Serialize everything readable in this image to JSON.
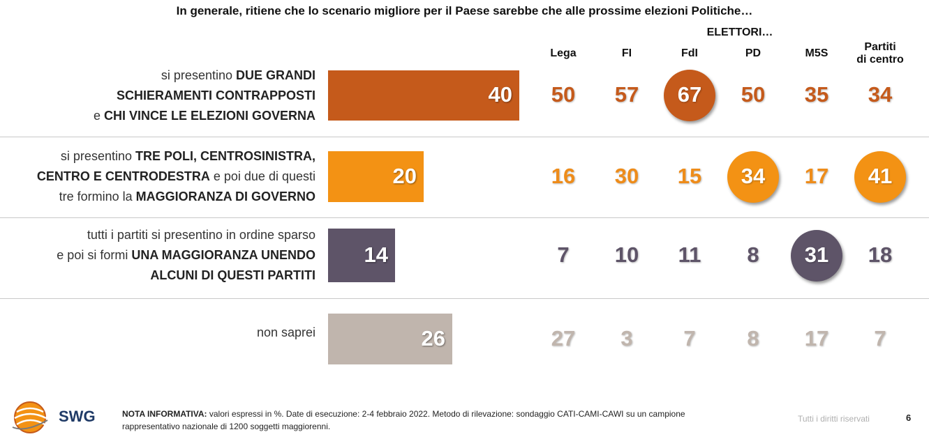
{
  "title": "In generale, ritiene che lo scenario migliore per il Paese sarebbe che alle prossime elezioni Politiche…",
  "group_header": "ELETTORI…",
  "columns": [
    {
      "line1": "Lega",
      "line2": ""
    },
    {
      "line1": "FI",
      "line2": ""
    },
    {
      "line1": "FdI",
      "line2": ""
    },
    {
      "line1": "PD",
      "line2": ""
    },
    {
      "line1": "M5S",
      "line2": ""
    },
    {
      "line1": "Partiti",
      "line2": "di centro"
    }
  ],
  "rows": [
    {
      "label_lines": [
        [
          {
            "t": "si presentino ",
            "b": false
          },
          {
            "t": "DUE GRANDI",
            "b": true
          }
        ],
        [
          {
            "t": "SCHIERAMENTI CONTRAPPOSTI",
            "b": true
          }
        ],
        [
          {
            "t": "e ",
            "b": false
          },
          {
            "t": "CHI VINCE LE ELEZIONI GOVERNA",
            "b": true
          }
        ]
      ],
      "color": "#C55A1B",
      "text_color": "#C55A1B",
      "highlight": [
        2
      ]
    },
    {
      "label_lines": [
        [
          {
            "t": "si presentino ",
            "b": false
          },
          {
            "t": "TRE POLI, CENTROSINISTRA,",
            "b": true
          }
        ],
        [
          {
            "t": "CENTRO E CENTRODESTRA",
            "b": true
          },
          {
            "t": " e poi due di questi",
            "b": false
          }
        ],
        [
          {
            "t": "tre formino la ",
            "b": false
          },
          {
            "t": "MAGGIORANZA DI GOVERNO",
            "b": true
          }
        ]
      ],
      "color": "#F39214",
      "text_color": "#EE8C1A",
      "highlight": [
        3,
        5
      ]
    },
    {
      "label_lines": [
        [
          {
            "t": "tutti i partiti si presentino in ordine sparso",
            "b": false
          }
        ],
        [
          {
            "t": "e poi si formi ",
            "b": false
          },
          {
            "t": "UNA MAGGIORANZA UNENDO",
            "b": true
          }
        ],
        [
          {
            "t": "ALCUNI DI QUESTI PARTITI",
            "b": true
          }
        ]
      ],
      "color": "#5E5468",
      "text_color": "#5E5468",
      "highlight": [
        4
      ]
    },
    {
      "label_lines": [
        [
          {
            "t": "non saprei",
            "b": false
          }
        ]
      ],
      "color": "#C0B5AD",
      "text_color": "#C0B5AD",
      "highlight": []
    }
  ],
  "chart_data": {
    "type": "table",
    "title": "In generale, ritiene che lo scenario migliore per il Paese sarebbe che alle prossime elezioni Politiche…",
    "categories": [
      "si presentino DUE GRANDI SCHIERAMENTI CONTRAPPOSTI e CHI VINCE LE ELEZIONI GOVERNA",
      "si presentino TRE POLI, CENTROSINISTRA, CENTRO E CENTRODESTRA e poi due di questi tre formino la MAGGIORANZA DI GOVERNO",
      "tutti i partiti si presentino in ordine sparso e poi si formi UNA MAGGIORANZA UNENDO ALCUNI DI QUESTI PARTITI",
      "non saprei"
    ],
    "total": [
      40,
      20,
      14,
      26
    ],
    "xlim": [
      0,
      100
    ],
    "series": [
      {
        "name": "Lega",
        "values": [
          50,
          16,
          7,
          27
        ]
      },
      {
        "name": "FI",
        "values": [
          57,
          30,
          10,
          3
        ]
      },
      {
        "name": "FdI",
        "values": [
          67,
          15,
          11,
          7
        ]
      },
      {
        "name": "PD",
        "values": [
          50,
          34,
          8,
          8
        ]
      },
      {
        "name": "M5S",
        "values": [
          35,
          17,
          31,
          17
        ]
      },
      {
        "name": "Partiti di centro",
        "values": [
          34,
          41,
          18,
          7
        ]
      }
    ]
  },
  "footer": {
    "logo_text": "SWG",
    "nota_bold": "NOTA INFORMATIVA:",
    "nota_text": " valori espressi in %. Date di esecuzione: 2-4 febbraio 2022. Metodo di rilevazione: sondaggio CATI-CAMI-CAWI su un campione rappresentativo nazionale di 1200 soggetti maggiorenni.",
    "rights": "Tutti i diritti riservati",
    "page": "6"
  }
}
